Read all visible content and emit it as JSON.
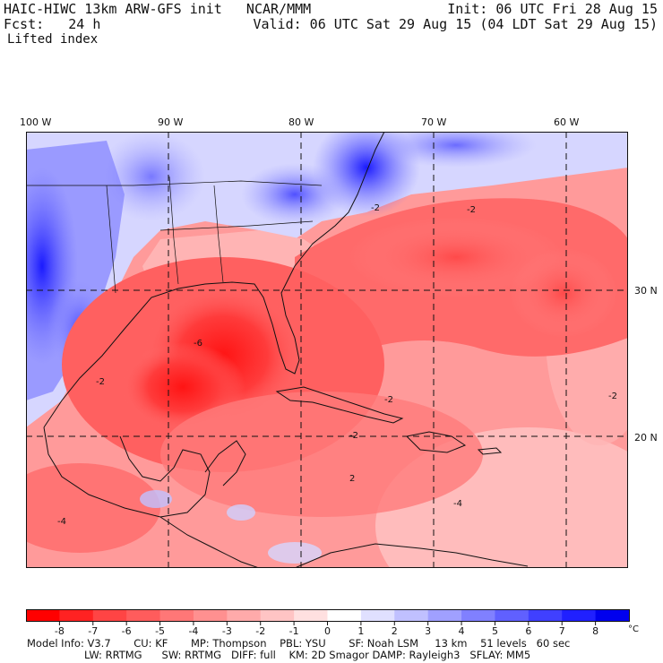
{
  "header": {
    "model_line": "HAIC-HIWC 13km ARW-GFS init   NCAR/MMM",
    "fcst_line": "Fcst:   24 h",
    "field_name": "Lifted index",
    "init_line": "Init: 06 UTC Fri 28 Aug 15",
    "valid_line": "Valid: 06 UTC Sat 29 Aug 15 (04 LDT Sat 29 Aug 15)"
  },
  "map": {
    "lon_labels": [
      "100 W",
      "90 W",
      "80 W",
      "70 W",
      "60 W"
    ],
    "lat_labels": [
      "30 N",
      "20 N"
    ],
    "contour_labels": [
      "-2",
      "-2",
      "-2",
      "-6",
      "-2",
      "-2",
      "-4",
      "2",
      "-2",
      "-4"
    ]
  },
  "colorbar": {
    "tick_labels": [
      "-8",
      "-7",
      "-6",
      "-5",
      "-4",
      "-3",
      "-2",
      "-1",
      "0",
      "1",
      "2",
      "3",
      "4",
      "5",
      "6",
      "7",
      "8"
    ],
    "unit": "°C",
    "colors": [
      "#ff0000",
      "#ff2222",
      "#ff4444",
      "#ff5c5c",
      "#ff7777",
      "#ff9090",
      "#ffaaaa",
      "#ffc4c4",
      "#ffe0e0",
      "#ffffff",
      "#e0e0ff",
      "#c0c0ff",
      "#a0a0ff",
      "#8080ff",
      "#6060ff",
      "#4040ff",
      "#2020ff",
      "#0000ee"
    ]
  },
  "footer": {
    "line1": "Model Info: V3.7       CU: KF       MP: Thompson    PBL: YSU       SF: Noah LSM     13 km    51 levels   60 sec",
    "line2": "LW: RRTMG      SW: RRTMG   DIFF: full    KM: 2D Smagor DAMP: Rayleigh3   SFLAY: MM5"
  }
}
